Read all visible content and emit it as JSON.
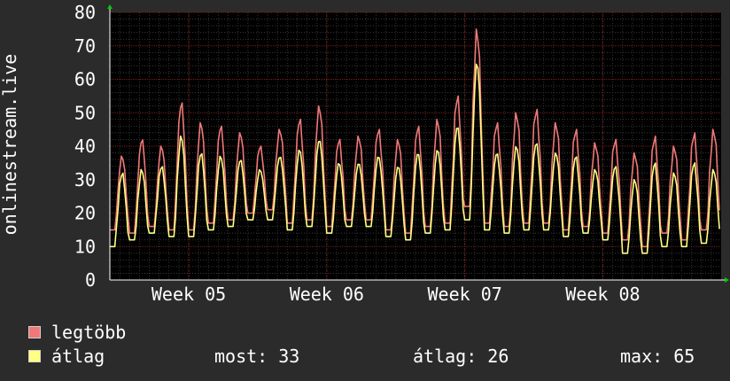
{
  "chart_data": {
    "type": "line",
    "ylabel": "onlinestream.live",
    "ylim": [
      0,
      80
    ],
    "y_ticks": [
      0,
      10,
      20,
      30,
      40,
      50,
      60,
      70,
      80
    ],
    "x_range_days": [
      0,
      31
    ],
    "x_ticks": [
      {
        "label": "Week 05",
        "day": 4
      },
      {
        "label": "Week 06",
        "day": 11
      },
      {
        "label": "Week 07",
        "day": 18
      },
      {
        "label": "Week 08",
        "day": 25
      }
    ],
    "grid": true,
    "series": [
      {
        "name": "legtöbb",
        "color": "#f07878",
        "daily_peaks": [
          37,
          42,
          40,
          53,
          47,
          46,
          44,
          40,
          45,
          48,
          52,
          42,
          43,
          45,
          42,
          46,
          48,
          55,
          75,
          47,
          50,
          51,
          47,
          45,
          41,
          42,
          38,
          43,
          40,
          44,
          45
        ],
        "daily_mins": [
          15,
          14,
          16,
          15,
          15,
          17,
          18,
          20,
          21,
          17,
          18,
          16,
          18,
          18,
          15,
          14,
          16,
          17,
          22,
          17,
          16,
          17,
          17,
          15,
          16,
          14,
          12,
          10,
          14,
          12,
          15
        ]
      },
      {
        "name": "átlag",
        "color": "#ffff80",
        "daily_peaks": [
          32,
          33,
          34,
          43,
          38,
          37,
          36,
          33,
          37,
          39,
          42,
          35,
          35,
          37,
          34,
          38,
          39,
          46,
          65,
          38,
          40,
          41,
          38,
          37,
          33,
          34,
          30,
          35,
          32,
          35,
          33
        ],
        "daily_mins": [
          10,
          12,
          14,
          13,
          13,
          15,
          16,
          18,
          18,
          15,
          16,
          14,
          16,
          16,
          13,
          12,
          14,
          15,
          18,
          15,
          14,
          15,
          15,
          13,
          14,
          12,
          8,
          8,
          10,
          10,
          11
        ]
      }
    ]
  },
  "legend": {
    "max_label": "legtöbb",
    "avg_label": "átlag",
    "colors": {
      "max": "#f07878",
      "avg": "#ffff80"
    }
  },
  "stats": {
    "current": "most: 33",
    "average": "átlag: 26",
    "maximum": "max: 65"
  }
}
